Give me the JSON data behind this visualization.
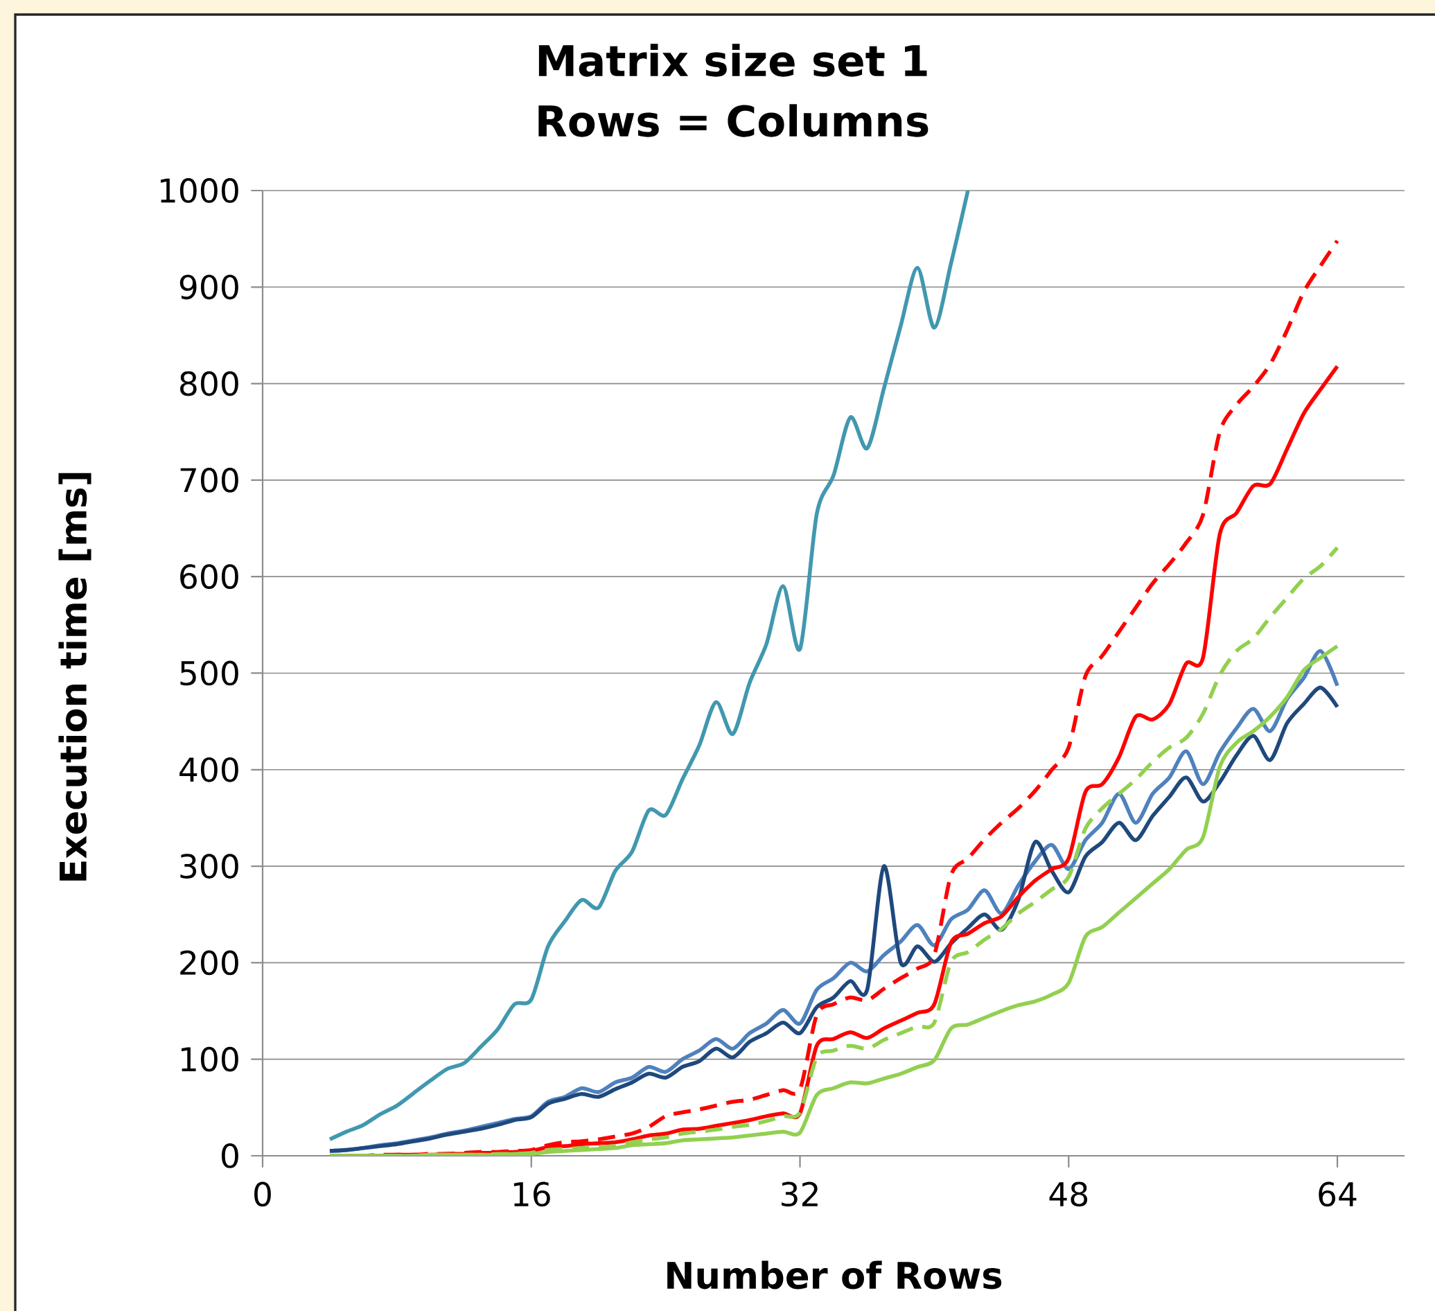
{
  "chart_data": {
    "type": "line",
    "title": "Matrix size set 1",
    "subtitle": "Rows = Columns",
    "xlabel": "Number of Rows",
    "ylabel": "Execution time [ms]",
    "x": [
      4,
      5,
      6,
      7,
      8,
      9,
      10,
      11,
      12,
      13,
      14,
      15,
      16,
      17,
      18,
      19,
      20,
      21,
      22,
      23,
      24,
      25,
      26,
      27,
      28,
      29,
      30,
      31,
      32,
      33,
      34,
      35,
      36,
      37,
      38,
      39,
      40,
      41,
      42,
      43,
      44,
      45,
      46,
      47,
      48,
      49,
      50,
      51,
      52,
      53,
      54,
      55,
      56,
      57,
      58,
      59,
      60,
      61,
      62,
      63,
      64
    ],
    "xlim": [
      0,
      68
    ],
    "xticks": [
      0,
      16,
      32,
      48,
      64
    ],
    "ylim": [
      0,
      1000
    ],
    "yticks": [
      0,
      100,
      200,
      300,
      400,
      500,
      600,
      700,
      800,
      900,
      1000
    ],
    "grid": "y",
    "marker": "none",
    "series": [
      {
        "color": "#4198af",
        "line_style": "solid",
        "values": [
          17,
          25,
          32,
          43,
          52,
          65,
          78,
          90,
          96,
          113,
          131,
          157,
          162,
          217,
          243,
          265,
          257,
          295,
          315,
          358,
          353,
          390,
          425,
          470,
          437,
          490,
          530,
          590,
          525,
          665,
          705,
          765,
          733,
          795,
          860,
          920,
          858,
          925,
          1000,
          null,
          null,
          null,
          null,
          null,
          null,
          null,
          null,
          null,
          null,
          null,
          null,
          null,
          null,
          null,
          null,
          null,
          null,
          null,
          null,
          null,
          null
        ]
      },
      {
        "color": "#4f81bd",
        "line_style": "solid",
        "values": [
          5,
          6,
          8,
          11,
          13,
          16,
          19,
          23,
          26,
          30,
          34,
          38,
          41,
          56,
          61,
          70,
          66,
          76,
          81,
          92,
          87,
          100,
          109,
          121,
          111,
          127,
          137,
          151,
          137,
          172,
          184,
          200,
          191,
          208,
          222,
          239,
          218,
          245,
          255,
          275,
          251,
          280,
          305,
          322,
          297,
          327,
          345,
          375,
          345,
          375,
          392,
          419,
          385,
          418,
          443,
          463,
          440,
          473,
          495,
          523,
          487
        ]
      },
      {
        "color": "#1f497d",
        "line_style": "solid",
        "values": [
          5,
          6,
          8,
          10,
          12,
          15,
          18,
          22,
          25,
          28,
          32,
          37,
          40,
          54,
          59,
          64,
          61,
          69,
          76,
          85,
          81,
          92,
          98,
          111,
          102,
          118,
          127,
          138,
          127,
          154,
          164,
          181,
          172,
          300,
          200,
          217,
          201,
          220,
          236,
          250,
          234,
          265,
          325,
          295,
          273,
          310,
          325,
          345,
          327,
          352,
          372,
          392,
          367,
          387,
          415,
          435,
          410,
          448,
          468,
          485,
          465
        ]
      },
      {
        "color": "#ff0000",
        "line_style": "solid",
        "values": [
          0,
          0,
          0,
          0,
          1,
          1,
          1,
          2,
          2,
          3,
          3,
          4,
          5,
          9,
          10,
          12,
          13,
          14,
          17,
          21,
          23,
          27,
          28,
          31,
          34,
          37,
          41,
          44,
          44,
          114,
          121,
          128,
          122,
          132,
          140,
          148,
          157,
          221,
          230,
          241,
          248,
          268,
          285,
          297,
          308,
          377,
          385,
          413,
          455,
          452,
          468,
          510,
          516,
          644,
          666,
          694,
          696,
          732,
          769,
          794,
          818
        ]
      },
      {
        "color": "#ff0000",
        "line_style": "dashed",
        "values": [
          0,
          0,
          0,
          1,
          1,
          1,
          2,
          2,
          3,
          4,
          4,
          5,
          6,
          11,
          14,
          15,
          17,
          20,
          23,
          30,
          41,
          45,
          48,
          52,
          56,
          58,
          63,
          68,
          69,
          146,
          157,
          164,
          161,
          173,
          184,
          194,
          208,
          291,
          308,
          328,
          345,
          360,
          378,
          400,
          423,
          497,
          518,
          543,
          568,
          593,
          613,
          635,
          664,
          750,
          778,
          797,
          820,
          855,
          895,
          922,
          948
        ]
      },
      {
        "color": "#92d050",
        "line_style": "dashed",
        "values": [
          0,
          0,
          0,
          0,
          0,
          0,
          1,
          1,
          1,
          1,
          2,
          2,
          3,
          6,
          7,
          8,
          9,
          10,
          14,
          17,
          19,
          23,
          25,
          27,
          30,
          32,
          36,
          41,
          45,
          102,
          109,
          114,
          111,
          120,
          127,
          134,
          138,
          201,
          211,
          224,
          235,
          251,
          263,
          276,
          289,
          339,
          360,
          375,
          390,
          408,
          423,
          433,
          458,
          498,
          523,
          536,
          558,
          578,
          598,
          611,
          630
        ]
      },
      {
        "color": "#92d050",
        "line_style": "solid",
        "values": [
          0,
          0,
          0,
          0,
          0,
          0,
          1,
          1,
          1,
          1,
          1,
          2,
          2,
          4,
          5,
          6,
          7,
          8,
          11,
          12,
          13,
          16,
          17,
          18,
          19,
          21,
          23,
          25,
          24,
          63,
          70,
          76,
          75,
          80,
          85,
          92,
          99,
          132,
          136,
          143,
          150,
          156,
          160,
          167,
          179,
          227,
          237,
          252,
          267,
          282,
          297,
          317,
          330,
          403,
          428,
          440,
          455,
          475,
          503,
          516,
          528
        ]
      }
    ]
  }
}
